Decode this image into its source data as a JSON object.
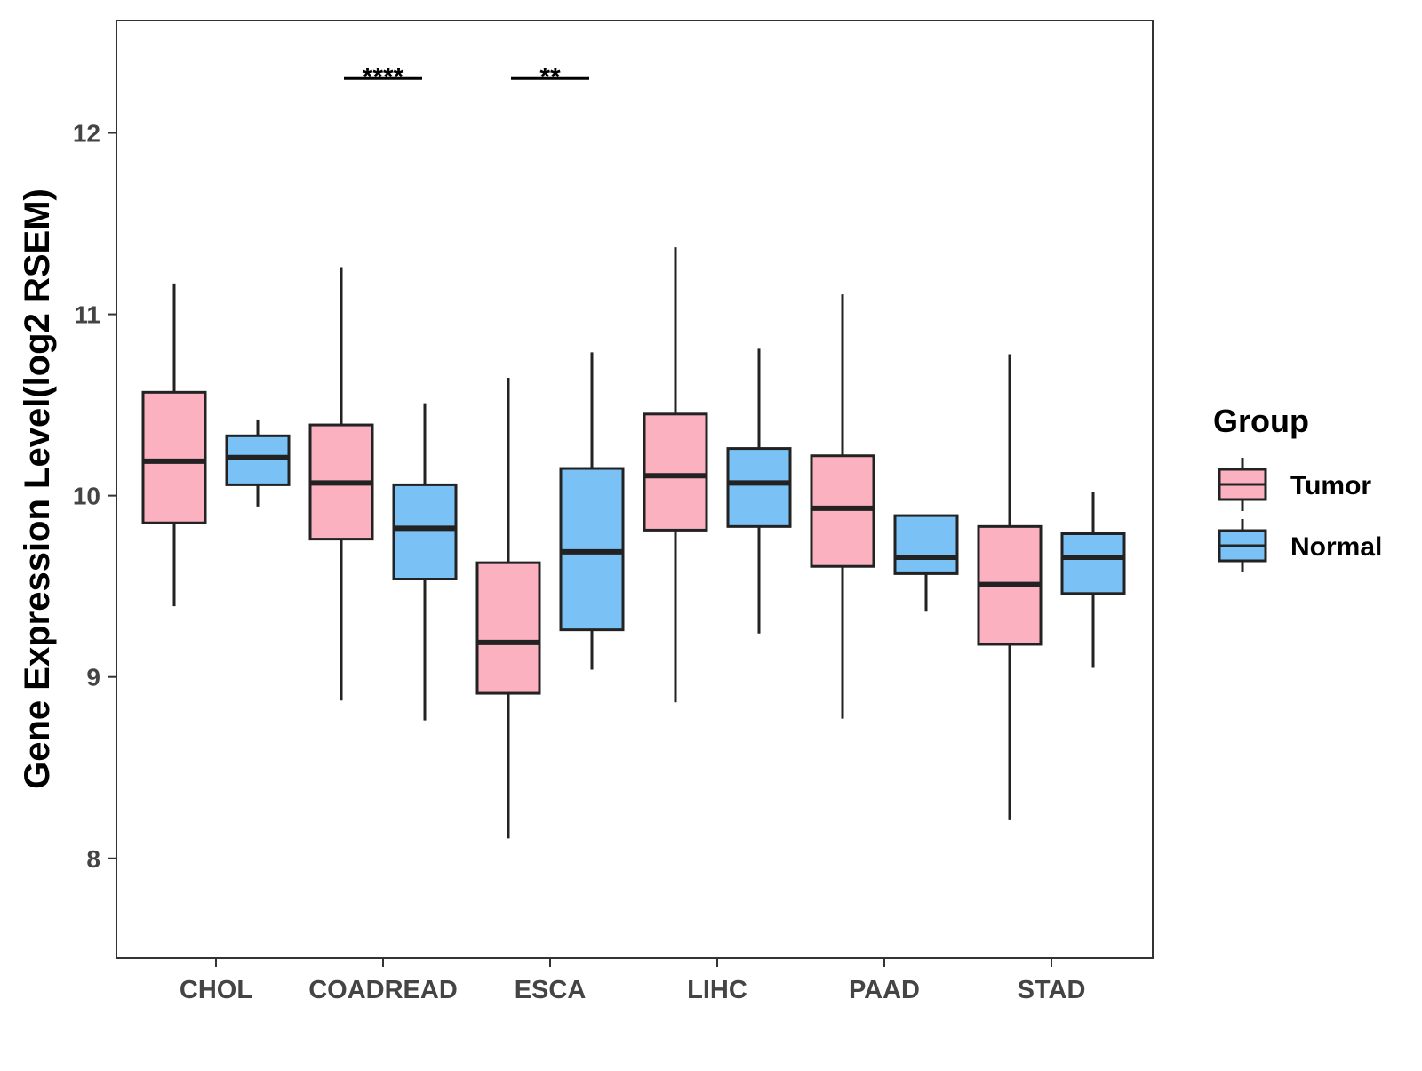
{
  "chart_data": {
    "type": "boxplot",
    "ylabel": "Gene Expression Level(log2 RSEM)",
    "xlabel": "",
    "ylim": [
      7.45,
      12.62
    ],
    "yticks": [
      "8",
      "9",
      "10",
      "11",
      "12"
    ],
    "categories": [
      "CHOL",
      "COADREAD",
      "ESCA",
      "LIHC",
      "PAAD",
      "STAD"
    ],
    "legend": {
      "title": "Group",
      "position": "right",
      "entries": [
        {
          "name": "Tumor",
          "color": "#fbb1c0"
        },
        {
          "name": "Normal",
          "color": "#7ac1f5"
        }
      ]
    },
    "series": [
      {
        "name": "Tumor",
        "color": "#fbb1c0",
        "boxes": [
          {
            "category": "CHOL",
            "min": 9.39,
            "q1": 9.85,
            "median": 10.19,
            "q3": 10.57,
            "max": 11.17
          },
          {
            "category": "COADREAD",
            "min": 8.87,
            "q1": 9.76,
            "median": 10.07,
            "q3": 10.39,
            "max": 11.26
          },
          {
            "category": "ESCA",
            "min": 8.11,
            "q1": 8.91,
            "median": 9.19,
            "q3": 9.63,
            "max": 10.65
          },
          {
            "category": "LIHC",
            "min": 8.86,
            "q1": 9.81,
            "median": 10.11,
            "q3": 10.45,
            "max": 11.37
          },
          {
            "category": "PAAD",
            "min": 8.77,
            "q1": 9.61,
            "median": 9.93,
            "q3": 10.22,
            "max": 11.11
          },
          {
            "category": "STAD",
            "min": 8.21,
            "q1": 9.18,
            "median": 9.51,
            "q3": 9.83,
            "max": 10.78
          }
        ]
      },
      {
        "name": "Normal",
        "color": "#7ac1f5",
        "boxes": [
          {
            "category": "CHOL",
            "min": 9.94,
            "q1": 10.06,
            "median": 10.21,
            "q3": 10.33,
            "max": 10.42
          },
          {
            "category": "COADREAD",
            "min": 8.76,
            "q1": 9.54,
            "median": 9.82,
            "q3": 10.06,
            "max": 10.51
          },
          {
            "category": "ESCA",
            "min": 9.04,
            "q1": 9.26,
            "median": 9.69,
            "q3": 10.15,
            "max": 10.79
          },
          {
            "category": "LIHC",
            "min": 9.24,
            "q1": 9.83,
            "median": 10.07,
            "q3": 10.26,
            "max": 10.81
          },
          {
            "category": "PAAD",
            "min": 9.36,
            "q1": 9.57,
            "median": 9.66,
            "q3": 9.89,
            "max": 9.89
          },
          {
            "category": "STAD",
            "min": 9.05,
            "q1": 9.46,
            "median": 9.66,
            "q3": 9.79,
            "max": 10.02
          }
        ]
      }
    ],
    "annotations": [
      {
        "category": "COADREAD",
        "label": "****",
        "y": 12.3
      },
      {
        "category": "ESCA",
        "label": "**",
        "y": 12.3
      }
    ]
  }
}
